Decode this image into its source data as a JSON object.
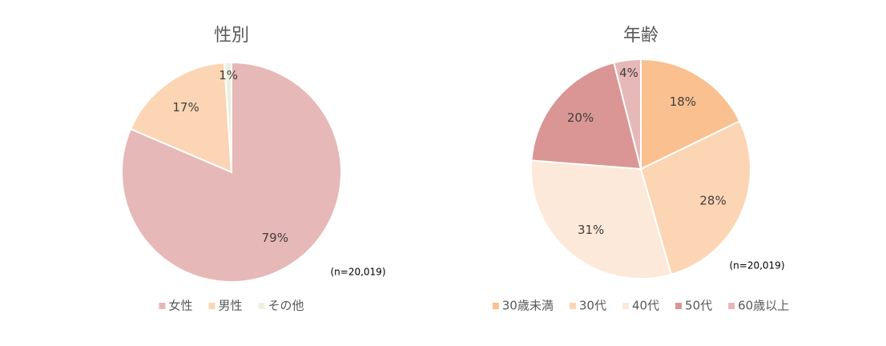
{
  "chart_data": [
    {
      "type": "pie",
      "title": "性別",
      "categories": [
        "女性",
        "男性",
        "その他"
      ],
      "values": [
        79,
        17,
        1
      ],
      "value_labels": [
        "79%",
        "17%",
        "1%"
      ],
      "colors": [
        "#e6b8b7",
        "#fcd5b4",
        "#ebf1de"
      ],
      "annotation": "(n=20,019)",
      "legend": "bottom"
    },
    {
      "type": "pie",
      "title": "年齢",
      "categories": [
        "30歳未満",
        "30代",
        "40代",
        "50代",
        "60歳以上"
      ],
      "values": [
        18,
        28,
        31,
        20,
        4
      ],
      "value_labels": [
        "18%",
        "28%",
        "31%",
        "20%",
        "4%"
      ],
      "colors": [
        "#fac090",
        "#fcd5b4",
        "#fde9d9",
        "#da9694",
        "#e6b8b7"
      ],
      "annotation": "(n=20,019)",
      "legend": "bottom"
    }
  ]
}
